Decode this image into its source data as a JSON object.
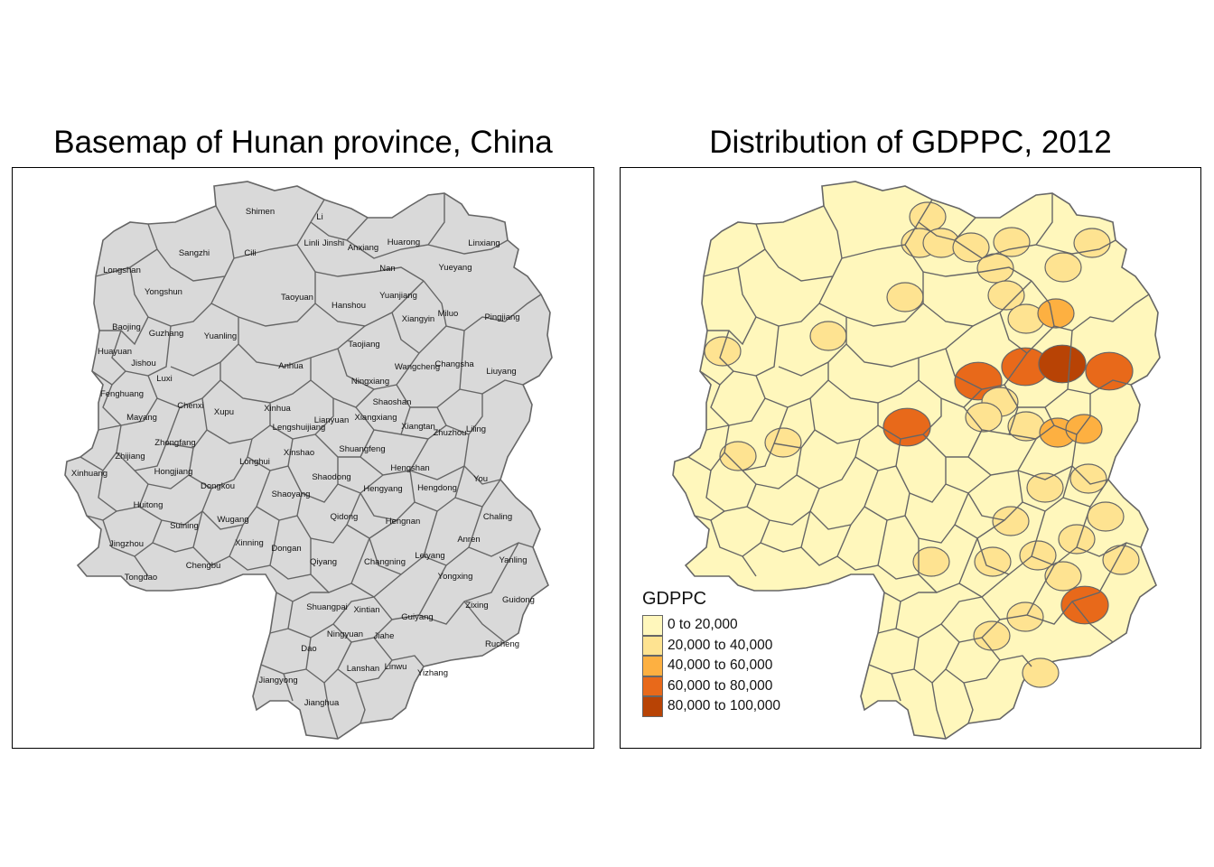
{
  "left_panel": {
    "title": "Basemap of Hunan province, China",
    "fill_color": "#d9d9d9",
    "border_color": "#666666"
  },
  "right_panel": {
    "title": "Distribution of GDPPC, 2012",
    "legend": {
      "title": "GDPPC",
      "classes": [
        {
          "label": "0 to 20,000",
          "color": "#fff7bc"
        },
        {
          "label": "20,000 to 40,000",
          "color": "#fee391"
        },
        {
          "label": "40,000 to 60,000",
          "color": "#fdb041"
        },
        {
          "label": "60,000 to 80,000",
          "color": "#e8691a"
        },
        {
          "label": "80,000 to 100,000",
          "color": "#b84305"
        }
      ]
    }
  },
  "counties": [
    {
      "name": "Shimen",
      "class": 0
    },
    {
      "name": "Li",
      "class": 1
    },
    {
      "name": "Linli",
      "class": 1
    },
    {
      "name": "Jinshi",
      "class": 1
    },
    {
      "name": "Anxiang",
      "class": 1
    },
    {
      "name": "Huarong",
      "class": 1
    },
    {
      "name": "Linxiang",
      "class": 1
    },
    {
      "name": "Sangzhi",
      "class": 0
    },
    {
      "name": "Cili",
      "class": 0
    },
    {
      "name": "Longshan",
      "class": 0
    },
    {
      "name": "Nan",
      "class": 1
    },
    {
      "name": "Yueyang",
      "class": 1
    },
    {
      "name": "Yongshun",
      "class": 0
    },
    {
      "name": "Taoyuan",
      "class": 1
    },
    {
      "name": "Yuanjiang",
      "class": 1
    },
    {
      "name": "Hanshou",
      "class": 0
    },
    {
      "name": "Xiangyin",
      "class": 1
    },
    {
      "name": "Miluo",
      "class": 2
    },
    {
      "name": "Pingjiang",
      "class": 0
    },
    {
      "name": "Baojing",
      "class": 0
    },
    {
      "name": "Guzhang",
      "class": 0
    },
    {
      "name": "Yuanling",
      "class": 1
    },
    {
      "name": "Huayuan",
      "class": 1
    },
    {
      "name": "Jishou",
      "class": 0
    },
    {
      "name": "Taojiang",
      "class": 0
    },
    {
      "name": "Anhua",
      "class": 0
    },
    {
      "name": "Wangcheng",
      "class": 3
    },
    {
      "name": "Changsha",
      "class": 4
    },
    {
      "name": "Liuyang",
      "class": 3
    },
    {
      "name": "Luxi",
      "class": 0
    },
    {
      "name": "Fenghuang",
      "class": 0
    },
    {
      "name": "Ningxiang",
      "class": 3
    },
    {
      "name": "Chenxi",
      "class": 0
    },
    {
      "name": "Shaoshan",
      "class": 1
    },
    {
      "name": "Mayang",
      "class": 0
    },
    {
      "name": "Xupu",
      "class": 0
    },
    {
      "name": "Xinhua",
      "class": 0
    },
    {
      "name": "Lianyuan",
      "class": 0
    },
    {
      "name": "Xiangxiang",
      "class": 1
    },
    {
      "name": "Lengshuijiang",
      "class": 3
    },
    {
      "name": "Xiangtan",
      "class": 1
    },
    {
      "name": "Zhuzhou",
      "class": 2
    },
    {
      "name": "Liling",
      "class": 2
    },
    {
      "name": "Zhongfang",
      "class": 1
    },
    {
      "name": "Zhijiang",
      "class": 1
    },
    {
      "name": "Xinhuang",
      "class": 0
    },
    {
      "name": "Xinshao",
      "class": 0
    },
    {
      "name": "Shuangfeng",
      "class": 0
    },
    {
      "name": "Hongjiang",
      "class": 0
    },
    {
      "name": "Longhui",
      "class": 0
    },
    {
      "name": "Shaodong",
      "class": 0
    },
    {
      "name": "Hengshan",
      "class": 0
    },
    {
      "name": "You",
      "class": 1
    },
    {
      "name": "Dongkou",
      "class": 0
    },
    {
      "name": "Hengyang",
      "class": 0
    },
    {
      "name": "Hengdong",
      "class": 1
    },
    {
      "name": "Shaoyang",
      "class": 0
    },
    {
      "name": "Huitong",
      "class": 0
    },
    {
      "name": "Chaling",
      "class": 1
    },
    {
      "name": "Suining",
      "class": 0
    },
    {
      "name": "Wugang",
      "class": 0
    },
    {
      "name": "Qidong",
      "class": 0
    },
    {
      "name": "Hengnan",
      "class": 1
    },
    {
      "name": "Jingzhou",
      "class": 0
    },
    {
      "name": "Xinning",
      "class": 0
    },
    {
      "name": "Anren",
      "class": 1
    },
    {
      "name": "Dongan",
      "class": 0
    },
    {
      "name": "Tongdao",
      "class": 0
    },
    {
      "name": "Chengbu",
      "class": 0
    },
    {
      "name": "Leiyang",
      "class": 1
    },
    {
      "name": "Qiyang",
      "class": 1
    },
    {
      "name": "Changning",
      "class": 1
    },
    {
      "name": "Yongxing",
      "class": 1
    },
    {
      "name": "Yanling",
      "class": 1
    },
    {
      "name": "Guidong",
      "class": 0
    },
    {
      "name": "Zixing",
      "class": 3
    },
    {
      "name": "Shuangpai",
      "class": 0
    },
    {
      "name": "Xintian",
      "class": 0
    },
    {
      "name": "Guiyang",
      "class": 1
    },
    {
      "name": "Rucheng",
      "class": 0
    },
    {
      "name": "Ningyuan",
      "class": 0
    },
    {
      "name": "Jiahe",
      "class": 1
    },
    {
      "name": "Dao",
      "class": 0
    },
    {
      "name": "Lanshan",
      "class": 0
    },
    {
      "name": "Linwu",
      "class": 0
    },
    {
      "name": "Yizhang",
      "class": 1
    },
    {
      "name": "Jiangyong",
      "class": 0
    },
    {
      "name": "Jianghua",
      "class": 0
    }
  ]
}
